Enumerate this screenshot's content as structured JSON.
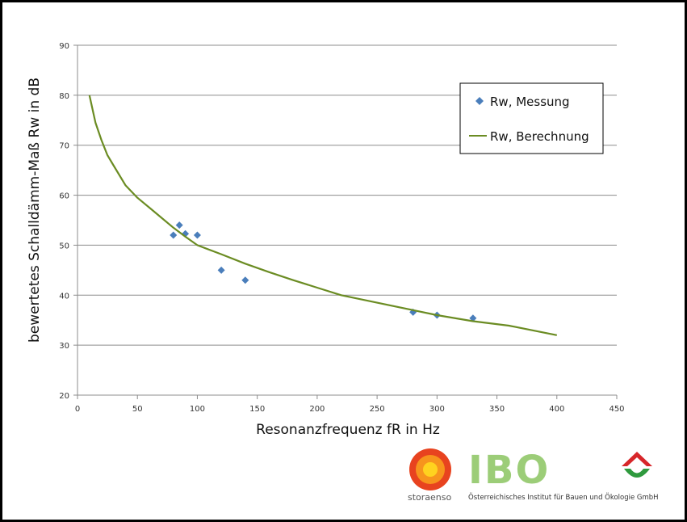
{
  "chart_data": {
    "type": "scatter",
    "xlabel": "Resonanzfrequenz fR in Hz",
    "ylabel": "bewertetes Schalldämm-Maß Rw in dB",
    "xlim": [
      0,
      450
    ],
    "ylim": [
      20,
      90
    ],
    "x_ticks": [
      0,
      50,
      100,
      150,
      200,
      250,
      300,
      350,
      400,
      450
    ],
    "y_ticks": [
      20,
      30,
      40,
      50,
      60,
      70,
      80,
      90
    ],
    "grid": "horizontal",
    "legend_position": "top-right",
    "series": [
      {
        "name": "Rw, Messung",
        "type": "scatter",
        "color": "#4a7ebb",
        "marker": "diamond",
        "points": [
          [
            80,
            52
          ],
          [
            85,
            54
          ],
          [
            90,
            52.3
          ],
          [
            100,
            52
          ],
          [
            120,
            45
          ],
          [
            140,
            43
          ],
          [
            280,
            36.6
          ],
          [
            300,
            36
          ],
          [
            330,
            35.4
          ]
        ]
      },
      {
        "name": "Rw, Berechnung",
        "type": "line",
        "color": "#6b8c23",
        "points": [
          [
            10,
            80
          ],
          [
            15,
            74.5
          ],
          [
            20,
            71
          ],
          [
            25,
            68
          ],
          [
            30,
            66
          ],
          [
            40,
            62
          ],
          [
            50,
            59.5
          ],
          [
            60,
            57.5
          ],
          [
            70,
            55.5
          ],
          [
            80,
            53.5
          ],
          [
            90,
            51.7
          ],
          [
            100,
            50
          ],
          [
            120,
            48.2
          ],
          [
            140,
            46.3
          ],
          [
            160,
            44.6
          ],
          [
            180,
            43
          ],
          [
            200,
            41.5
          ],
          [
            220,
            40
          ],
          [
            250,
            38.5
          ],
          [
            280,
            37
          ],
          [
            300,
            36
          ],
          [
            330,
            34.8
          ],
          [
            360,
            33.9
          ],
          [
            400,
            32
          ]
        ]
      }
    ]
  },
  "logos": {
    "storaenso_label": "storaenso",
    "ibo_label": "IBO",
    "ibo_subtitle": "Österreichisches Institut für Bauen und Ökologie GmbH"
  }
}
